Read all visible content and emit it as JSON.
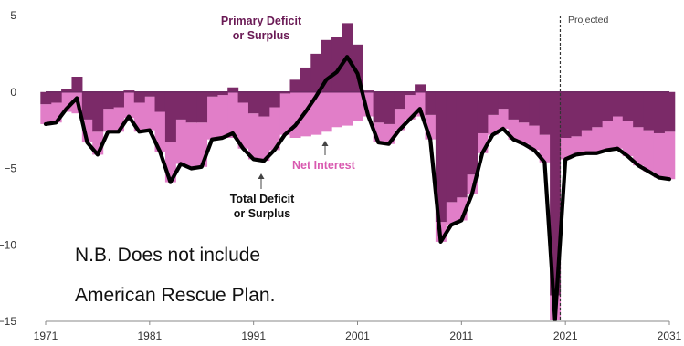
{
  "chart_data": {
    "type": "area",
    "title": "",
    "xlabel": "",
    "ylabel": "",
    "xlim": [
      1971,
      2031
    ],
    "ylim": [
      -15,
      5
    ],
    "x_ticks": [
      1971,
      1981,
      1991,
      2001,
      2011,
      2021,
      2031
    ],
    "y_ticks": [
      5,
      0,
      -5,
      -10,
      -15
    ],
    "grid": false,
    "x": [
      1971,
      1972,
      1973,
      1974,
      1975,
      1976,
      1977,
      1978,
      1979,
      1980,
      1981,
      1982,
      1983,
      1984,
      1985,
      1986,
      1987,
      1988,
      1989,
      1990,
      1991,
      1992,
      1993,
      1994,
      1995,
      1996,
      1997,
      1998,
      1999,
      2000,
      2001,
      2002,
      2003,
      2004,
      2005,
      2006,
      2007,
      2008,
      2009,
      2010,
      2011,
      2012,
      2013,
      2014,
      2015,
      2016,
      2017,
      2018,
      2019,
      2020,
      2021,
      2022,
      2023,
      2024,
      2025,
      2026,
      2027,
      2028,
      2029,
      2030,
      2031
    ],
    "series": [
      {
        "name": "Total Deficit or Surplus",
        "color": "#000000",
        "values": [
          -2.1,
          -2.0,
          -1.1,
          -0.4,
          -3.3,
          -4.1,
          -2.6,
          -2.6,
          -1.6,
          -2.6,
          -2.5,
          -3.9,
          -5.9,
          -4.7,
          -5.0,
          -4.9,
          -3.1,
          -3.0,
          -2.7,
          -3.7,
          -4.4,
          -4.5,
          -3.8,
          -2.8,
          -2.2,
          -1.3,
          -0.3,
          0.8,
          1.3,
          2.3,
          1.2,
          -1.5,
          -3.3,
          -3.4,
          -2.5,
          -1.8,
          -1.1,
          -3.1,
          -9.8,
          -8.7,
          -8.4,
          -6.7,
          -4.0,
          -2.8,
          -2.4,
          -3.1,
          -3.4,
          -3.8,
          -4.6,
          -14.9,
          -4.4,
          -4.1,
          -4.0,
          -4.0,
          -3.8,
          -3.7,
          -4.2,
          -4.8,
          -5.2,
          -5.6,
          -5.7
        ]
      },
      {
        "name": "Net Interest",
        "color": "#e17ec8",
        "values": [
          -1.3,
          -1.3,
          -1.3,
          -1.4,
          -1.5,
          -1.5,
          -1.5,
          -1.6,
          -1.7,
          -1.9,
          -2.2,
          -2.6,
          -2.6,
          -2.9,
          -3.0,
          -2.9,
          -2.8,
          -2.8,
          -3.0,
          -3.0,
          -3.0,
          -2.9,
          -2.8,
          -2.7,
          -3.0,
          -2.9,
          -2.8,
          -2.6,
          -2.3,
          -2.2,
          -1.9,
          -1.6,
          -1.3,
          -1.3,
          -1.4,
          -1.6,
          -1.6,
          -1.6,
          -1.3,
          -1.5,
          -1.5,
          -1.3,
          -1.3,
          -1.3,
          -1.3,
          -1.3,
          -1.4,
          -1.6,
          -1.8,
          -1.6,
          -1.4,
          -1.2,
          -1.5,
          -1.7,
          -1.9,
          -2.1,
          -2.3,
          -2.5,
          -2.7,
          -2.9,
          -3.1
        ]
      },
      {
        "name": "Primary Deficit or Surplus",
        "color": "#7b2a68",
        "values": [
          -0.8,
          -0.7,
          0.2,
          1.0,
          -1.8,
          -2.6,
          -1.1,
          -1.0,
          0.1,
          -0.7,
          -0.3,
          -1.3,
          -3.3,
          -1.8,
          -2.0,
          -2.0,
          -0.3,
          -0.2,
          0.3,
          -0.7,
          -1.4,
          -1.6,
          -1.0,
          -0.1,
          0.8,
          1.6,
          2.5,
          3.4,
          3.6,
          4.5,
          3.1,
          0.1,
          -2.0,
          -2.1,
          -1.1,
          -0.2,
          0.5,
          -1.5,
          -8.5,
          -7.2,
          -6.9,
          -5.4,
          -2.7,
          -1.5,
          -1.1,
          -1.8,
          -2.0,
          -2.2,
          -2.8,
          -13.3,
          -3.0,
          -2.9,
          -2.5,
          -2.3,
          -1.9,
          -1.6,
          -1.9,
          -2.3,
          -2.5,
          -2.7,
          -2.6
        ]
      }
    ],
    "annotations": {
      "primary_label": [
        "Primary Deficit",
        "or Surplus"
      ],
      "interest_label": "Net Interest",
      "total_label": [
        "Total Deficit",
        "or Surplus"
      ],
      "projected_label": "Projected",
      "projected_from": 2020.5,
      "note": [
        "N.B.  Does not include",
        "American Rescue Plan."
      ]
    }
  }
}
